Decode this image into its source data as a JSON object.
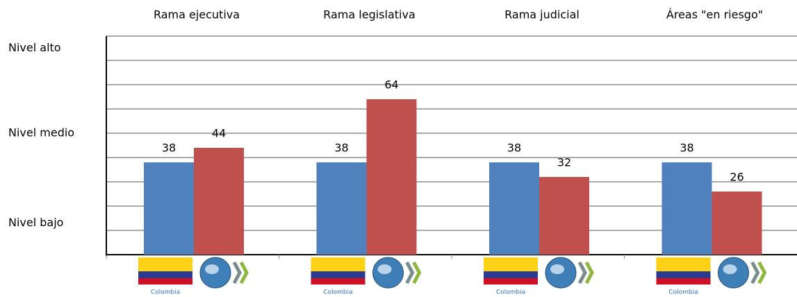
{
  "chart_data": {
    "type": "bar",
    "categories": [
      "Rama ejecutiva",
      "Rama legislativa",
      "Rama judicial",
      "Áreas \"en riesgo\""
    ],
    "series": [
      {
        "color": "#4f81bd",
        "values": [
          38,
          38,
          38,
          38
        ]
      },
      {
        "color": "#c0504d",
        "values": [
          44,
          64,
          32,
          26
        ]
      }
    ],
    "ylim": [
      0,
      90
    ],
    "yticks": [
      {
        "value": 85,
        "label": "Nivel alto"
      },
      {
        "value": 50,
        "label": "Nivel medio"
      },
      {
        "value": 13,
        "label": "Nivel bajo"
      }
    ],
    "gridlines": [
      10,
      20,
      30,
      40,
      50,
      60,
      70,
      80,
      90
    ],
    "grid": true,
    "flag_label": "Colombia"
  }
}
